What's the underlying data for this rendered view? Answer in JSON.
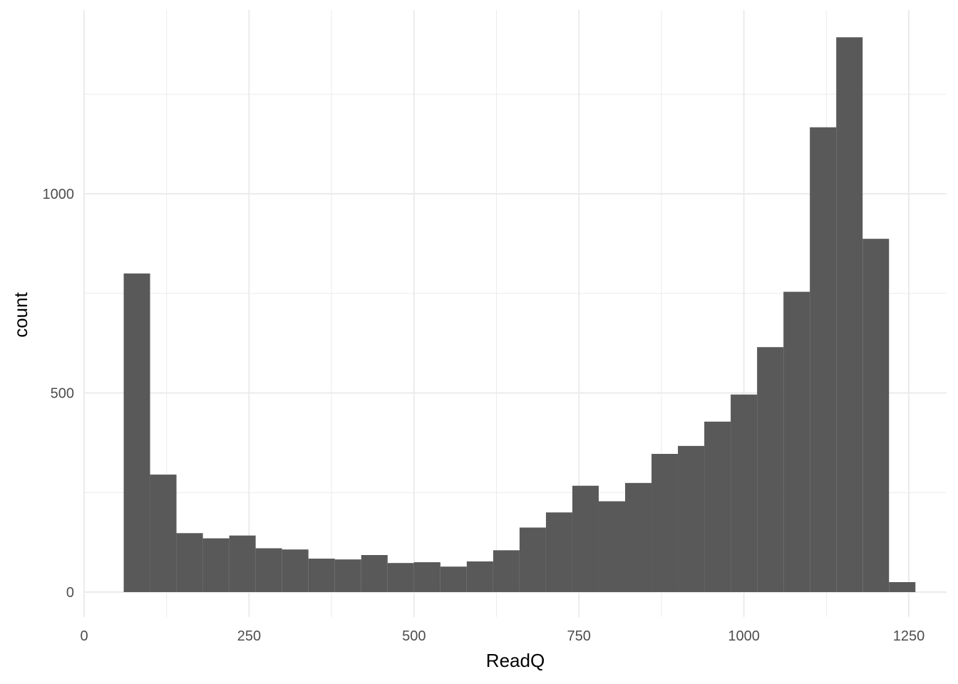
{
  "chart_data": {
    "type": "bar",
    "subtype": "histogram",
    "title": "",
    "xlabel": "ReadQ",
    "ylabel": "count",
    "xlim": [
      0,
      1300
    ],
    "ylim": [
      -60,
      1400
    ],
    "x_ticks": [
      0,
      250,
      500,
      750,
      1000,
      1250
    ],
    "x_tick_labels": [
      "0",
      "250",
      "500",
      "750",
      "1000",
      "1250"
    ],
    "y_ticks": [
      0,
      500,
      1000
    ],
    "y_tick_labels": [
      "0",
      "500",
      "1000"
    ],
    "grid": true,
    "legend": "none",
    "bar_color": "#595959",
    "grid_color": "#ebebeb",
    "bins": [
      {
        "x0": 60,
        "x1": 100,
        "count": 800
      },
      {
        "x0": 100,
        "x1": 140,
        "count": 295
      },
      {
        "x0": 140,
        "x1": 180,
        "count": 148
      },
      {
        "x0": 180,
        "x1": 220,
        "count": 135
      },
      {
        "x0": 220,
        "x1": 260,
        "count": 142
      },
      {
        "x0": 260,
        "x1": 300,
        "count": 110
      },
      {
        "x0": 300,
        "x1": 340,
        "count": 107
      },
      {
        "x0": 340,
        "x1": 380,
        "count": 84
      },
      {
        "x0": 380,
        "x1": 420,
        "count": 82
      },
      {
        "x0": 420,
        "x1": 460,
        "count": 93
      },
      {
        "x0": 460,
        "x1": 500,
        "count": 73
      },
      {
        "x0": 500,
        "x1": 540,
        "count": 75
      },
      {
        "x0": 540,
        "x1": 580,
        "count": 64
      },
      {
        "x0": 580,
        "x1": 620,
        "count": 77
      },
      {
        "x0": 620,
        "x1": 660,
        "count": 105
      },
      {
        "x0": 660,
        "x1": 700,
        "count": 162
      },
      {
        "x0": 700,
        "x1": 740,
        "count": 200
      },
      {
        "x0": 740,
        "x1": 780,
        "count": 267
      },
      {
        "x0": 780,
        "x1": 820,
        "count": 228
      },
      {
        "x0": 820,
        "x1": 860,
        "count": 274
      },
      {
        "x0": 860,
        "x1": 900,
        "count": 347
      },
      {
        "x0": 900,
        "x1": 940,
        "count": 367
      },
      {
        "x0": 940,
        "x1": 980,
        "count": 428
      },
      {
        "x0": 980,
        "x1": 1020,
        "count": 496
      },
      {
        "x0": 1020,
        "x1": 1060,
        "count": 615
      },
      {
        "x0": 1060,
        "x1": 1100,
        "count": 754
      },
      {
        "x0": 1100,
        "x1": 1140,
        "count": 1167
      },
      {
        "x0": 1140,
        "x1": 1180,
        "count": 1393
      },
      {
        "x0": 1180,
        "x1": 1220,
        "count": 887
      },
      {
        "x0": 1220,
        "x1": 1260,
        "count": 25
      }
    ]
  }
}
